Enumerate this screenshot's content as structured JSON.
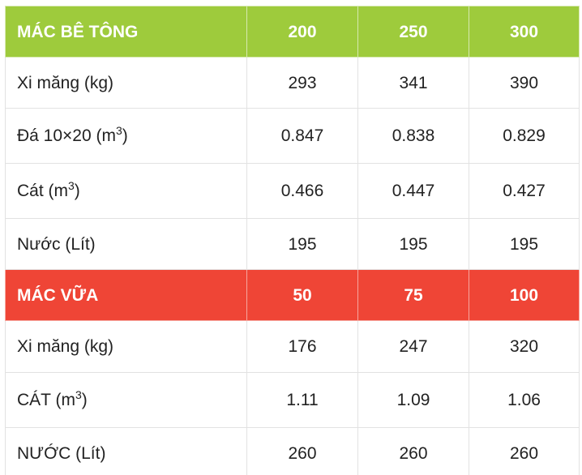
{
  "concrete": {
    "header": [
      "MÁC BÊ TÔNG",
      "200",
      "250",
      "300"
    ],
    "rows": [
      {
        "label": "Xi măng (kg)",
        "sup": "",
        "suffix": "",
        "values": [
          "293",
          "341",
          "390"
        ]
      },
      {
        "label": "Đá 10×20 (m",
        "sup": "3",
        "suffix": ")",
        "values": [
          "0.847",
          "0.838",
          "0.829"
        ]
      },
      {
        "label": "Cát (m",
        "sup": "3",
        "suffix": ")",
        "values": [
          "0.466",
          "0.447",
          "0.427"
        ]
      },
      {
        "label": "Nước (Lít)",
        "sup": "",
        "suffix": "",
        "values": [
          "195",
          "195",
          "195"
        ]
      }
    ]
  },
  "mortar": {
    "header": [
      "MÁC VỮA",
      "50",
      "75",
      "100"
    ],
    "rows": [
      {
        "label": "Xi măng (kg)",
        "sup": "",
        "suffix": "",
        "values": [
          "176",
          "247",
          "320"
        ]
      },
      {
        "label": "CÁT (m",
        "sup": "3",
        "suffix": ")",
        "values": [
          "1.11",
          "1.09",
          "1.06"
        ]
      },
      {
        "label": "NƯỚC (Lít)",
        "sup": "",
        "suffix": "",
        "values": [
          "260",
          "260",
          "260"
        ]
      }
    ]
  },
  "colors": {
    "concrete_header": "#9ecb3c",
    "mortar_header": "#ef4536",
    "border": "#e2e2e2"
  }
}
